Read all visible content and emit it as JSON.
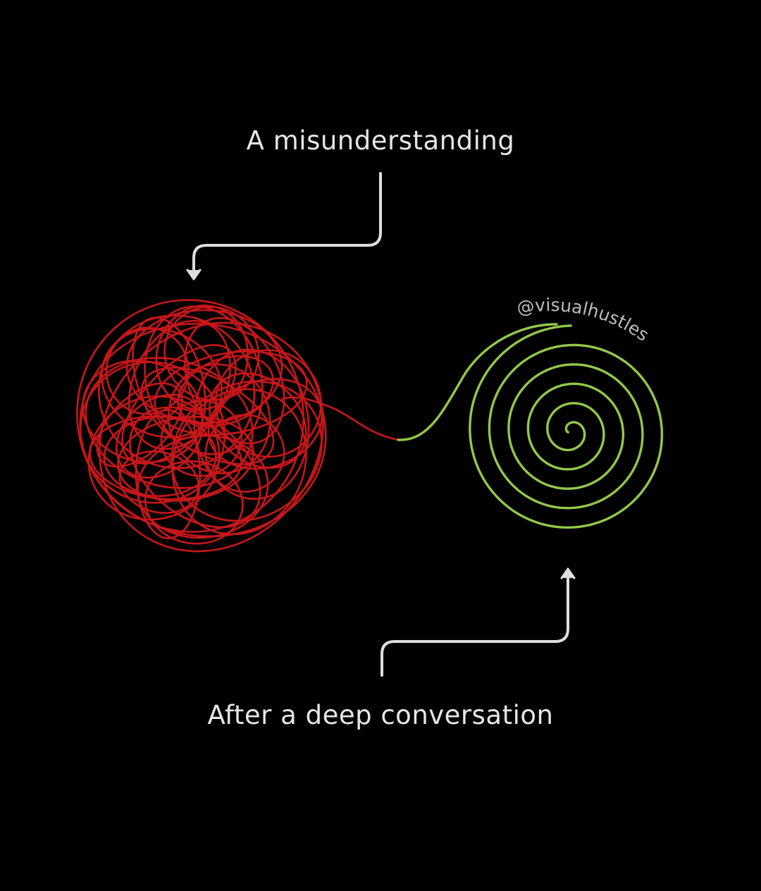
{
  "labels": {
    "top": "A misunderstanding",
    "bottom": "After a deep conversation"
  },
  "watermark": "@visualhustles",
  "colors": {
    "background": "#000000",
    "tangle": "#c8161a",
    "spiral": "#93c84a",
    "arrow": "#dedede",
    "text": "#e6e6e6"
  },
  "icons": {
    "tangle": "tangled-thread-icon",
    "spiral": "spiral-icon"
  }
}
